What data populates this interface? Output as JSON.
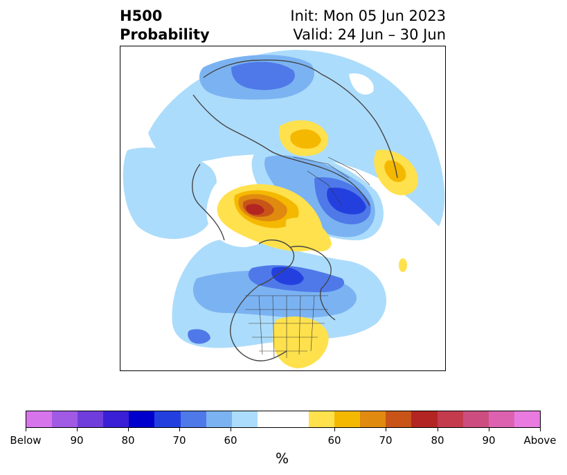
{
  "title": {
    "left_line1": "H500",
    "left_line2": "Probability",
    "right_line1": "Init: Mon 05 Jun 2023",
    "right_line2": "Valid: 24 Jun – 30 Jun"
  },
  "colorbar": {
    "unit": "%",
    "colors": [
      "#d674ec",
      "#a05ae4",
      "#6f3ddb",
      "#3a1fd6",
      "#0000cd",
      "#2340df",
      "#4f79e8",
      "#7bb3f2",
      "#acdcfb",
      "#ffffff",
      "#ffffff",
      "#ffe14d",
      "#f5b800",
      "#e08a10",
      "#c85418",
      "#b22522",
      "#c43b4e",
      "#cc4e80",
      "#dc62b0",
      "#e87ae0"
    ],
    "tick_labels": [
      "Below",
      "90",
      "80",
      "70",
      "60",
      "60",
      "70",
      "80",
      "90",
      "Above"
    ]
  },
  "map": {
    "projection": "north-polar-stereographic",
    "anomalies": [
      {
        "region": "northern-siberia",
        "sign": "below",
        "max_pct": 70
      },
      {
        "region": "western-siberia",
        "sign": "above",
        "max_pct": 60
      },
      {
        "region": "scandinavia",
        "sign": "below",
        "max_pct": 80
      },
      {
        "region": "mediterranean",
        "sign": "above",
        "max_pct": 60
      },
      {
        "region": "alaska-beaufort-sea",
        "sign": "above",
        "max_pct": 80
      },
      {
        "region": "canadian-arctic-archipelago",
        "sign": "above",
        "max_pct": 60
      },
      {
        "region": "hudson-bay-eastern-canada",
        "sign": "below",
        "max_pct": 80
      },
      {
        "region": "southeastern-us",
        "sign": "above",
        "max_pct": 60
      },
      {
        "region": "north-pacific",
        "sign": "below",
        "max_pct": 60
      }
    ]
  }
}
